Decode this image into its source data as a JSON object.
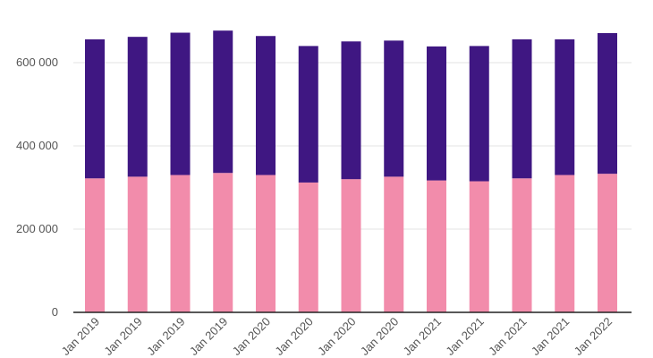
{
  "chart_data": {
    "type": "bar",
    "stacked": true,
    "categories": [
      "Jan 2019",
      "Jan 2019",
      "Jan 2019",
      "Jan 2019",
      "Jan 2020",
      "Jan 2020",
      "Jan 2020",
      "Jan 2020",
      "Jan 2021",
      "Jan 2021",
      "Jan 2021",
      "Jan 2021",
      "Jan 2022"
    ],
    "series": [
      {
        "color": "#f28cab",
        "values": [
          322000,
          326000,
          330000,
          335000,
          330000,
          312000,
          320000,
          326000,
          317000,
          315000,
          322000,
          330000,
          333000
        ]
      },
      {
        "color": "#3f1782",
        "values": [
          334000,
          336000,
          342000,
          342000,
          334000,
          328000,
          331000,
          327000,
          322000,
          325000,
          334000,
          326000,
          338000
        ]
      }
    ],
    "y_ticks": [
      0,
      200000,
      400000,
      600000
    ],
    "y_tick_labels": [
      "0",
      "200 000",
      "400 000",
      "600 000"
    ],
    "ylim": [
      0,
      680000
    ],
    "grid": true,
    "legend": "none",
    "title": "",
    "xlabel": "",
    "ylabel": ""
  }
}
